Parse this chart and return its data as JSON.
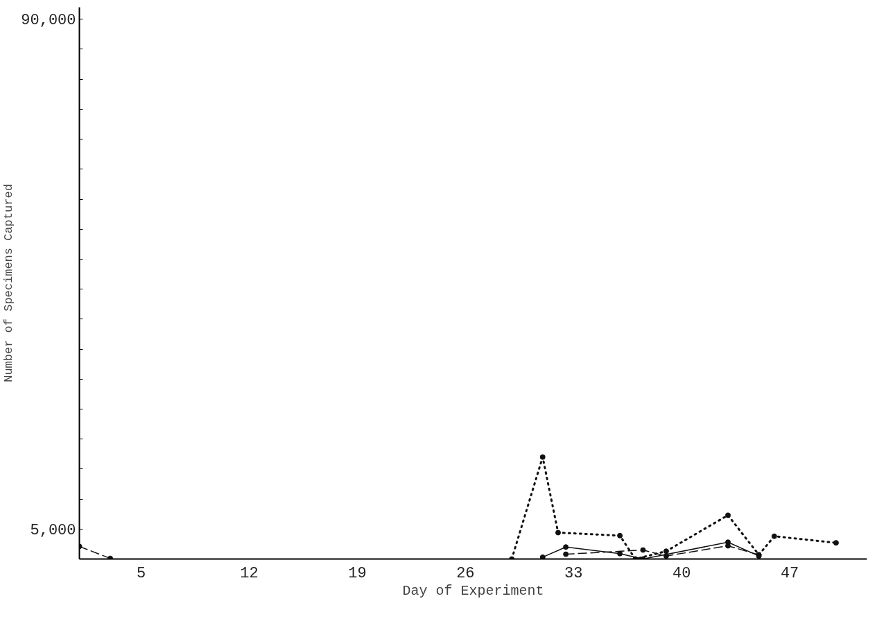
{
  "chart_data": {
    "type": "line",
    "xlabel": "Day of Experiment",
    "ylabel": "Number of Specimens Captured",
    "xlim": [
      1,
      52
    ],
    "xticks": [
      5,
      12,
      19,
      26,
      33,
      40,
      47
    ],
    "ylim": [
      0,
      92000
    ],
    "yticks": [
      {
        "value": 0,
        "label": null
      },
      {
        "value": 5000,
        "label": "5,000"
      },
      {
        "value": 10000,
        "label": null
      },
      {
        "value": 15000,
        "label": null
      },
      {
        "value": 20000,
        "label": null
      },
      {
        "value": 25000,
        "label": null
      },
      {
        "value": 30000,
        "label": null
      },
      {
        "value": 35000,
        "label": null
      },
      {
        "value": 40000,
        "label": null
      },
      {
        "value": 45000,
        "label": null
      },
      {
        "value": 50000,
        "label": null
      },
      {
        "value": 55000,
        "label": null
      },
      {
        "value": 60000,
        "label": null
      },
      {
        "value": 65000,
        "label": null
      },
      {
        "value": 70000,
        "label": null
      },
      {
        "value": 75000,
        "label": null
      },
      {
        "value": 80000,
        "label": null
      },
      {
        "value": 85000,
        "label": null
      },
      {
        "value": 90000,
        "label": "90,000"
      }
    ],
    "grid": false,
    "marker": "circle",
    "series": [
      {
        "color": "#111111",
        "line_style": "dotted",
        "x": [
          29,
          31,
          32,
          36,
          37,
          39,
          43,
          45,
          46,
          50
        ],
        "values": [
          0,
          17000,
          4400,
          3900,
          0,
          1300,
          7300,
          700,
          3800,
          2700
        ]
      },
      {
        "color": "#111111",
        "line_style": "solid",
        "x": [
          31,
          32.5,
          36,
          37.5,
          43,
          45
        ],
        "values": [
          300,
          2000,
          900,
          0,
          2800,
          500
        ]
      },
      {
        "color": "#111111",
        "line_style": "dashed",
        "x": [
          1,
          3,
          20,
          32.5,
          37.5,
          39,
          43,
          45
        ],
        "values": [
          2100,
          100,
          null,
          800,
          1500,
          500,
          2200,
          700
        ]
      }
    ]
  }
}
